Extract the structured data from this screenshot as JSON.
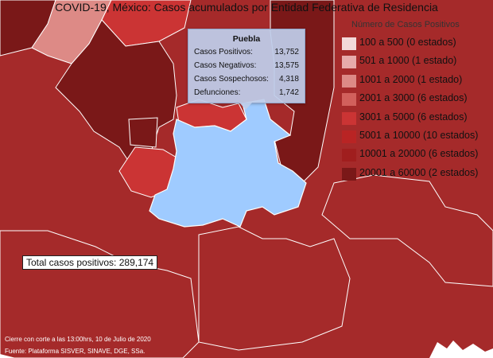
{
  "title": "COVID-19, México: Casos acumulados por Entidad Federativa de Residencia",
  "legend": {
    "title": "Número de Casos Positivos",
    "items": [
      {
        "label": "100 a    500  (0 estados)",
        "color": "#f3d9d9"
      },
      {
        "label": "501 a   1000  (1 estado)",
        "color": "#e7aaaa"
      },
      {
        "label": "1001 a   2000  (1 estado)",
        "color": "#dd8a86"
      },
      {
        "label": "2001 a   3000  (6 estados)",
        "color": "#d2605c"
      },
      {
        "label": "3001 a   5000  (6 estados)",
        "color": "#cb3434"
      },
      {
        "label": "5001 a 10000  (10 estados)",
        "color": "#b92424"
      },
      {
        "label": "10001 a 20000  (6 estados)",
        "color": "#a01e1e"
      },
      {
        "label": "20001 a 60000  (2 estados)",
        "color": "#7a1818"
      }
    ]
  },
  "tooltip": {
    "state": "Puebla",
    "rows": [
      {
        "label": "Casos Positivos:",
        "value": "13,752"
      },
      {
        "label": "Casos Negativos:",
        "value": "13,575"
      },
      {
        "label": "Casos Sospechosos:",
        "value": "4,318"
      },
      {
        "label": "Defunciones:",
        "value": "1,742"
      }
    ]
  },
  "total_label": "Total casos positivos: 289,174",
  "footer": {
    "line1": "Cierre con corte a las 13:00hrs, 10 de Julio de 2020",
    "line2": "Fuente: Plataforma SISVER, SINAVE, DGE, SSa."
  },
  "map_colors": {
    "background_region": "#a52a2a",
    "dark_region": "#7a1818",
    "mid_region": "#b92424",
    "light_region": "#d2605c",
    "pale_region": "#dd8a86",
    "highlight": "#9fcbff",
    "border": "#ffffff"
  }
}
